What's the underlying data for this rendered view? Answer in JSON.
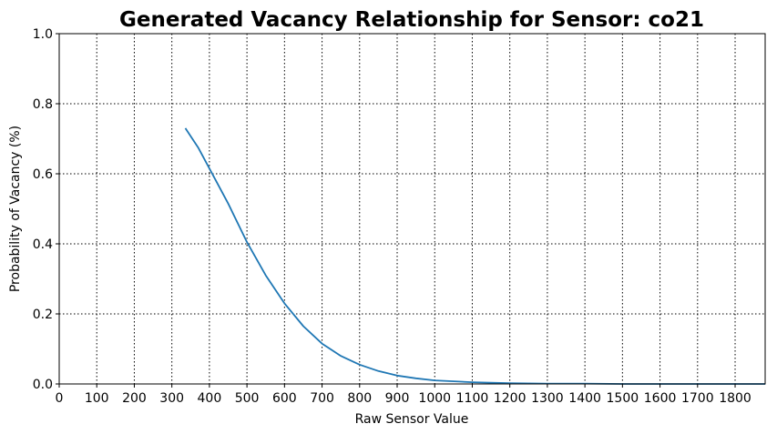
{
  "chart_data": {
    "type": "line",
    "title": "Generated Vacancy Relationship for Sensor: co21",
    "xlabel": "Raw Sensor Value",
    "ylabel": "Probability of Vacancy (%)",
    "xlim": [
      0,
      1880
    ],
    "ylim": [
      0.0,
      1.0
    ],
    "x_ticks": [
      0,
      100,
      200,
      300,
      400,
      500,
      600,
      700,
      800,
      900,
      1000,
      1100,
      1200,
      1300,
      1400,
      1500,
      1600,
      1700,
      1800
    ],
    "x_tick_labels": [
      "0",
      "100",
      "200",
      "300",
      "400",
      "500",
      "600",
      "700",
      "800",
      "900",
      "1000",
      "1100",
      "1200",
      "1300",
      "1400",
      "1500",
      "1600",
      "1700",
      "1800"
    ],
    "y_ticks": [
      0.0,
      0.2,
      0.4,
      0.6,
      0.8,
      1.0
    ],
    "y_tick_labels": [
      "0.0",
      "0.2",
      "0.4",
      "0.6",
      "0.8",
      "1.0"
    ],
    "grid": true,
    "line_color": "#1f77b4",
    "series": [
      {
        "x": [
          336,
          370,
          400,
          450,
          500,
          550,
          600,
          650,
          700,
          750,
          800,
          850,
          900,
          950,
          1000,
          1100,
          1200,
          1300,
          1400,
          1500,
          1600,
          1700,
          1800,
          1880
        ],
        "y": [
          0.73,
          0.675,
          0.615,
          0.515,
          0.405,
          0.31,
          0.23,
          0.165,
          0.115,
          0.08,
          0.055,
          0.037,
          0.024,
          0.016,
          0.01,
          0.005,
          0.002,
          0.001,
          0.001,
          0.0,
          0.0,
          0.0,
          0.0,
          0.0
        ]
      }
    ]
  }
}
